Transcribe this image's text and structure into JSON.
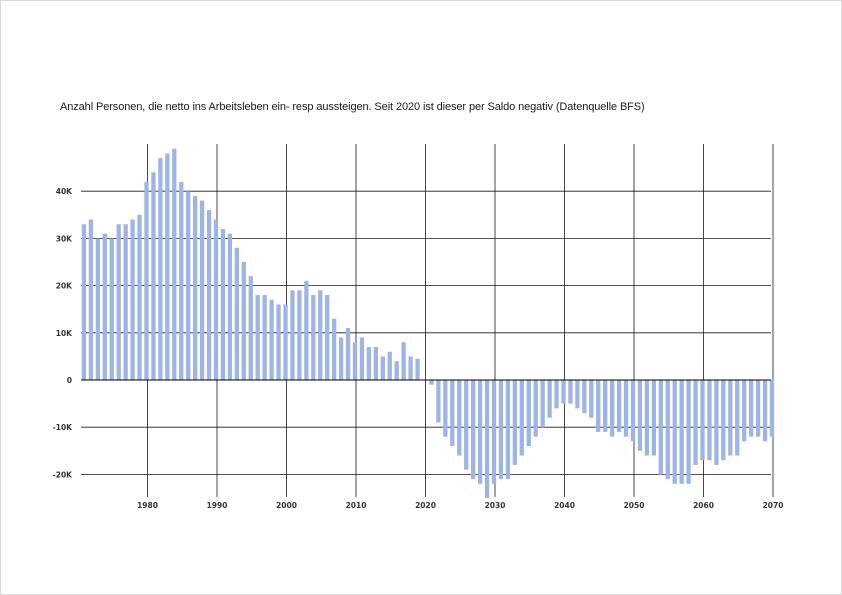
{
  "chart_data": {
    "type": "bar",
    "title": "Anzahl Personen, die netto ins Arbeitsleben ein- resp aussteigen. Seit 2020 ist dieser per Saldo negativ (Datenquelle BFS)",
    "xlabel": "",
    "ylabel": "",
    "x_start": 1971,
    "x": [
      1971,
      1972,
      1973,
      1974,
      1975,
      1976,
      1977,
      1978,
      1979,
      1980,
      1981,
      1982,
      1983,
      1984,
      1985,
      1986,
      1987,
      1988,
      1989,
      1990,
      1991,
      1992,
      1993,
      1994,
      1995,
      1996,
      1997,
      1998,
      1999,
      2000,
      2001,
      2002,
      2003,
      2004,
      2005,
      2006,
      2007,
      2008,
      2009,
      2010,
      2011,
      2012,
      2013,
      2014,
      2015,
      2016,
      2017,
      2018,
      2019,
      2020,
      2021,
      2022,
      2023,
      2024,
      2025,
      2026,
      2027,
      2028,
      2029,
      2030,
      2031,
      2032,
      2033,
      2034,
      2035,
      2036,
      2037,
      2038,
      2039,
      2040,
      2041,
      2042,
      2043,
      2044,
      2045,
      2046,
      2047,
      2048,
      2049,
      2050,
      2051,
      2052,
      2053,
      2054,
      2055,
      2056,
      2057,
      2058,
      2059,
      2060,
      2061,
      2062,
      2063,
      2064,
      2065,
      2066,
      2067,
      2068,
      2069,
      2070
    ],
    "values": [
      33000,
      34000,
      30000,
      31000,
      30000,
      33000,
      33000,
      34000,
      35000,
      42000,
      44000,
      47000,
      48000,
      49000,
      42000,
      40000,
      39000,
      38000,
      36000,
      34000,
      32000,
      31000,
      28000,
      25000,
      22000,
      18000,
      18000,
      17000,
      16000,
      16000,
      19000,
      19000,
      21000,
      18000,
      19000,
      18000,
      13000,
      9000,
      11000,
      8000,
      9000,
      7000,
      7000,
      5000,
      6000,
      4000,
      8000,
      5000,
      4500,
      0,
      -1000,
      -9000,
      -12000,
      -14000,
      -16000,
      -19000,
      -21000,
      -22000,
      -25000,
      -22000,
      -21000,
      -21000,
      -18000,
      -16000,
      -14000,
      -12000,
      -10000,
      -8000,
      -6000,
      -5000,
      -5000,
      -6000,
      -7000,
      -8000,
      -11000,
      -11000,
      -12000,
      -11000,
      -12000,
      -13000,
      -15000,
      -16000,
      -16000,
      -20000,
      -21000,
      -22000,
      -22000,
      -22000,
      -18000,
      -17000,
      -17000,
      -18000,
      -17000,
      -16000,
      -16000,
      -13000,
      -12000,
      -12000,
      -13000,
      -12000
    ],
    "ylim": [
      -25000,
      49000
    ],
    "yticks": [
      -20000,
      -10000,
      0,
      10000,
      20000,
      30000,
      40000
    ],
    "ytick_labels": [
      "-20K",
      "-10K",
      "0",
      "10K",
      "20K",
      "30K",
      "40K"
    ],
    "xticks": [
      1980,
      1990,
      2000,
      2010,
      2020,
      2030,
      2040,
      2050,
      2060,
      2070
    ],
    "xtick_labels": [
      "1980",
      "1990",
      "2000",
      "2010",
      "2020",
      "2030",
      "2040",
      "2050",
      "2060",
      "2070"
    ],
    "grid": true,
    "legend": "none",
    "colors": {
      "bar": "#9fb4e6",
      "grid": "#1a1a1a",
      "axis": "#000000"
    }
  }
}
